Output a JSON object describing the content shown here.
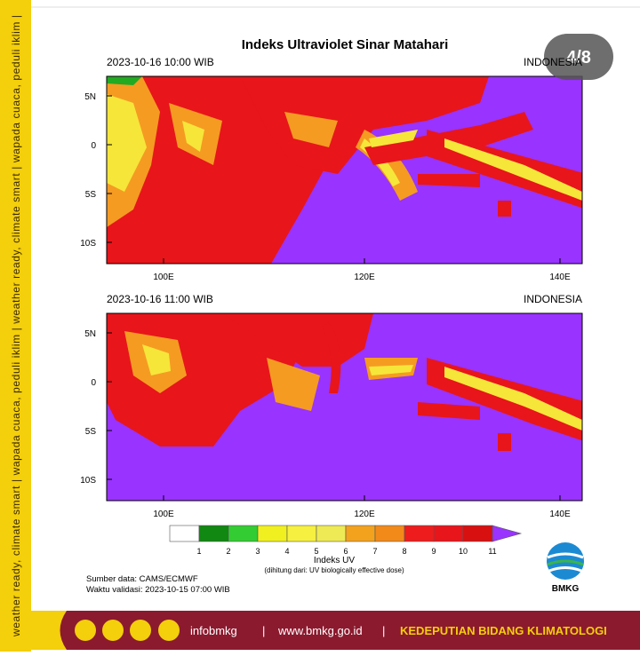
{
  "page_badge": "4/8",
  "title": "Indeks Ultraviolet Sinar Matahari",
  "panels": [
    {
      "time": "2023-10-16  10:00 WIB",
      "region": "INDONESIA"
    },
    {
      "time": "2023-10-16  11:00 WIB",
      "region": "INDONESIA"
    }
  ],
  "lat_labels": [
    "5N",
    "0",
    "5S",
    "10S"
  ],
  "lon_labels": [
    "100E",
    "120E",
    "140E"
  ],
  "legend": {
    "labels": [
      "1",
      "2",
      "3",
      "4",
      "5",
      "6",
      "7",
      "8",
      "9",
      "10",
      "11"
    ],
    "title": "Indeks UV",
    "note": "(dihitung dari: UV biologically effective dose)"
  },
  "source": "Sumber data: CAMS/ECMWF",
  "validity": "Waktu validasi: 2023-10-15 07:00 WIB",
  "logo": "BMKG",
  "side_text": "weather ready, climate smart  |  wapada cuaca, peduli iklim  |  weather ready, climate smart  |  wapada cuaca, peduli iklim  |",
  "footer": {
    "handle": "infobmkg",
    "separator": "|",
    "website": "www.bmkg.go.id",
    "org": "KEDEPUTIAN BIDANG KLIMATOLOGI"
  }
}
